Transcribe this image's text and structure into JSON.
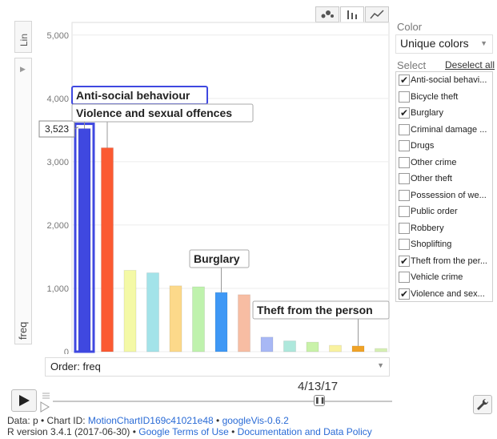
{
  "view_toggles": [
    {
      "name": "bubble-chart-tab",
      "icon": "bubble-icon",
      "active": false
    },
    {
      "name": "bar-chart-tab",
      "icon": "bar-chart-icon",
      "active": true
    },
    {
      "name": "line-chart-tab",
      "icon": "line-chart-icon",
      "active": false
    }
  ],
  "scale_button": "Lin",
  "y_axis_label": "freq",
  "order": {
    "label": "Order: freq"
  },
  "player": {
    "date": "4/13/17"
  },
  "color_panel": {
    "title": "Color",
    "value": "Unique colors"
  },
  "select_panel": {
    "title": "Select",
    "deselect_all": "Deselect all",
    "items": [
      {
        "label": "Anti-social behavi...",
        "checked": true
      },
      {
        "label": "Bicycle theft",
        "checked": false
      },
      {
        "label": "Burglary",
        "checked": true
      },
      {
        "label": "Criminal damage ...",
        "checked": false
      },
      {
        "label": "Drugs",
        "checked": false
      },
      {
        "label": "Other crime",
        "checked": false
      },
      {
        "label": "Other theft",
        "checked": false
      },
      {
        "label": "Possession of we...",
        "checked": false
      },
      {
        "label": "Public order",
        "checked": false
      },
      {
        "label": "Robbery",
        "checked": false
      },
      {
        "label": "Shoplifting",
        "checked": false
      },
      {
        "label": "Theft from the per...",
        "checked": true
      },
      {
        "label": "Vehicle crime",
        "checked": false
      },
      {
        "label": "Violence and sex...",
        "checked": true
      }
    ]
  },
  "footer": {
    "line1_prefix": "Data: p • Chart ID: ",
    "chart_id": "MotionChartID169c41021e48",
    "line1_sep": " • ",
    "googlevis": "googleVis-0.6.2",
    "line2_prefix": "R version 3.4.1 (2017-06-30) • ",
    "terms": "Google Terms of Use",
    "line2_sep": " • ",
    "docs": "Documentation and Data Policy"
  },
  "chart_data": {
    "type": "bar",
    "ylim": [
      0,
      5200
    ],
    "yticks": [
      0,
      1000,
      2000,
      3000,
      4000,
      5000
    ],
    "ytick_labels": [
      "0",
      "1,000",
      "2,000",
      "3,000",
      "4,000",
      "5,000"
    ],
    "grid": true,
    "bars": [
      {
        "value": 3523,
        "color": "#3f48e0",
        "selected": true
      },
      {
        "value": 3220,
        "color": "#fb5a32"
      },
      {
        "value": 1285,
        "color": "#f4f9a6"
      },
      {
        "value": 1245,
        "color": "#a3e3e9"
      },
      {
        "value": 1040,
        "color": "#fcd98a"
      },
      {
        "value": 1025,
        "color": "#bff2ad"
      },
      {
        "value": 935,
        "color": "#3f98f5"
      },
      {
        "value": 900,
        "color": "#f7bda3"
      },
      {
        "value": 230,
        "color": "#a8b8f5"
      },
      {
        "value": 170,
        "color": "#aee8dc"
      },
      {
        "value": 150,
        "color": "#c9f2a9"
      },
      {
        "value": 100,
        "color": "#f9f2a0"
      },
      {
        "value": 90,
        "color": "#f0a327"
      },
      {
        "value": 50,
        "color": "#d6f0b3"
      }
    ],
    "value_label": "3,523",
    "annotations": [
      {
        "text": "Anti-social behaviour",
        "bar": 0,
        "selected": true
      },
      {
        "text": "Violence and sexual offences",
        "bar": 1
      },
      {
        "text": "Burglary",
        "bar": 6
      },
      {
        "text": "Theft from the person",
        "bar": 12
      }
    ]
  }
}
